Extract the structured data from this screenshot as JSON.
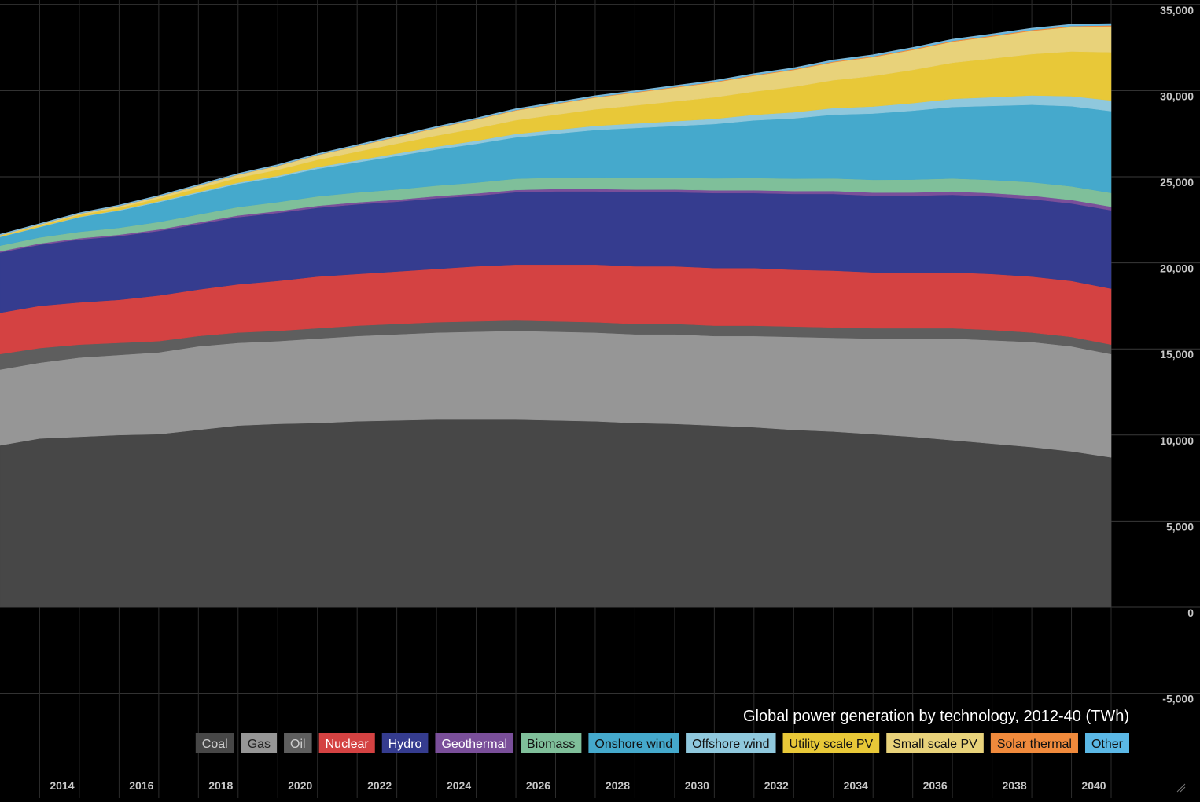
{
  "chart_data": {
    "type": "area",
    "stacked": true,
    "title": "Global power generation by technology, 2012-40 (TWh)",
    "xlabel": "",
    "ylabel": "",
    "x": [
      2012,
      2013,
      2014,
      2015,
      2016,
      2017,
      2018,
      2019,
      2020,
      2021,
      2022,
      2023,
      2024,
      2025,
      2026,
      2027,
      2028,
      2029,
      2030,
      2031,
      2032,
      2033,
      2034,
      2035,
      2036,
      2037,
      2038,
      2039,
      2040
    ],
    "x_ticks": [
      "2014",
      "2016",
      "2018",
      "2020",
      "2022",
      "2024",
      "2026",
      "2028",
      "2030",
      "2032",
      "2034",
      "2036",
      "2038",
      "2040"
    ],
    "y_ticks": [
      "35,000",
      "30,000",
      "25,000",
      "20,000",
      "15,000",
      "10,000",
      "5,000",
      "0",
      "-5,000"
    ],
    "ylim": [
      -5000,
      35000
    ],
    "grid": true,
    "legend_position": "bottom-right",
    "series": [
      {
        "name": "Coal",
        "color": "#474747",
        "text_color": "#cfcfcf",
        "values": [
          9400,
          9800,
          9900,
          10000,
          10050,
          10300,
          10550,
          10650,
          10700,
          10800,
          10850,
          10900,
          10900,
          10900,
          10850,
          10800,
          10700,
          10650,
          10550,
          10450,
          10300,
          10200,
          10050,
          9900,
          9700,
          9500,
          9300,
          9050,
          8700
        ]
      },
      {
        "name": "Gas",
        "color": "#969696",
        "text_color": "#222222",
        "values": [
          4400,
          4400,
          4600,
          4650,
          4750,
          4850,
          4800,
          4800,
          4900,
          4950,
          5000,
          5050,
          5100,
          5150,
          5150,
          5150,
          5150,
          5200,
          5200,
          5300,
          5400,
          5450,
          5550,
          5700,
          5900,
          6000,
          6100,
          6100,
          6000
        ]
      },
      {
        "name": "Oil",
        "color": "#5e5e5e",
        "text_color": "#cfcfcf",
        "values": [
          900,
          850,
          750,
          700,
          650,
          600,
          600,
          600,
          600,
          600,
          600,
          600,
          600,
          600,
          600,
          600,
          600,
          600,
          600,
          600,
          600,
          600,
          600,
          600,
          600,
          600,
          550,
          550,
          550
        ]
      },
      {
        "name": "Nuclear",
        "color": "#d44242",
        "text_color": "#ffffff",
        "values": [
          2400,
          2450,
          2450,
          2500,
          2650,
          2700,
          2800,
          2900,
          3000,
          3000,
          3050,
          3100,
          3200,
          3250,
          3300,
          3350,
          3350,
          3350,
          3350,
          3350,
          3300,
          3300,
          3250,
          3250,
          3250,
          3250,
          3250,
          3250,
          3250
        ]
      },
      {
        "name": "Hydro",
        "color": "#353c8f",
        "text_color": "#ffffff",
        "values": [
          3500,
          3550,
          3650,
          3700,
          3750,
          3800,
          3900,
          3950,
          4000,
          4050,
          4050,
          4100,
          4100,
          4200,
          4250,
          4250,
          4300,
          4300,
          4350,
          4350,
          4400,
          4450,
          4450,
          4450,
          4500,
          4500,
          4500,
          4500,
          4550
        ]
      },
      {
        "name": "Geothermal",
        "color": "#7a4f9a",
        "text_color": "#ffffff",
        "values": [
          70,
          75,
          80,
          85,
          90,
          95,
          100,
          105,
          110,
          115,
          120,
          125,
          130,
          135,
          140,
          145,
          150,
          155,
          160,
          165,
          170,
          175,
          180,
          185,
          190,
          195,
          200,
          205,
          210
        ]
      },
      {
        "name": "Biomass",
        "color": "#7fbf9a",
        "text_color": "#111111",
        "values": [
          330,
          350,
          370,
          400,
          430,
          460,
          490,
          520,
          550,
          570,
          590,
          610,
          630,
          650,
          660,
          670,
          680,
          690,
          700,
          710,
          720,
          730,
          740,
          750,
          760,
          770,
          780,
          790,
          800
        ]
      },
      {
        "name": "Onshore wind",
        "color": "#45a9cc",
        "text_color": "#111111",
        "values": [
          500,
          600,
          850,
          1000,
          1150,
          1250,
          1350,
          1450,
          1600,
          1750,
          1950,
          2100,
          2250,
          2400,
          2550,
          2750,
          2900,
          3000,
          3150,
          3350,
          3500,
          3700,
          3850,
          4000,
          4150,
          4300,
          4500,
          4650,
          4750
        ]
      },
      {
        "name": "Offshore wind",
        "color": "#8fc8dd",
        "text_color": "#111111",
        "values": [
          15,
          20,
          25,
          35,
          50,
          60,
          70,
          80,
          100,
          120,
          140,
          160,
          180,
          200,
          220,
          240,
          260,
          280,
          300,
          320,
          350,
          380,
          410,
          440,
          470,
          500,
          540,
          580,
          620
        ]
      },
      {
        "name": "Utility scale PV",
        "color": "#e8c838",
        "text_color": "#111111",
        "values": [
          50,
          70,
          100,
          130,
          170,
          220,
          280,
          350,
          420,
          500,
          570,
          640,
          720,
          800,
          880,
          960,
          1050,
          1150,
          1250,
          1350,
          1480,
          1620,
          1770,
          1930,
          2100,
          2250,
          2400,
          2600,
          2800
        ]
      },
      {
        "name": "Small scale PV",
        "color": "#e8d27a",
        "text_color": "#111111",
        "values": [
          40,
          55,
          70,
          90,
          110,
          140,
          180,
          220,
          270,
          320,
          380,
          440,
          500,
          560,
          620,
          680,
          740,
          800,
          860,
          920,
          980,
          1040,
          1100,
          1160,
          1220,
          1280,
          1350,
          1420,
          1500
        ]
      },
      {
        "name": "Solar thermal",
        "color": "#f08a3c",
        "text_color": "#111111",
        "values": [
          5,
          6,
          7,
          8,
          9,
          10,
          12,
          14,
          16,
          18,
          20,
          22,
          24,
          26,
          28,
          30,
          32,
          34,
          36,
          38,
          40,
          42,
          44,
          46,
          48,
          50,
          52,
          54,
          56
        ]
      },
      {
        "name": "Other",
        "color": "#5bb8e6",
        "text_color": "#111111",
        "values": [
          30,
          32,
          34,
          36,
          38,
          40,
          42,
          44,
          46,
          48,
          50,
          52,
          54,
          56,
          58,
          60,
          62,
          64,
          66,
          68,
          70,
          72,
          74,
          76,
          78,
          80,
          82,
          84,
          86
        ]
      }
    ]
  }
}
